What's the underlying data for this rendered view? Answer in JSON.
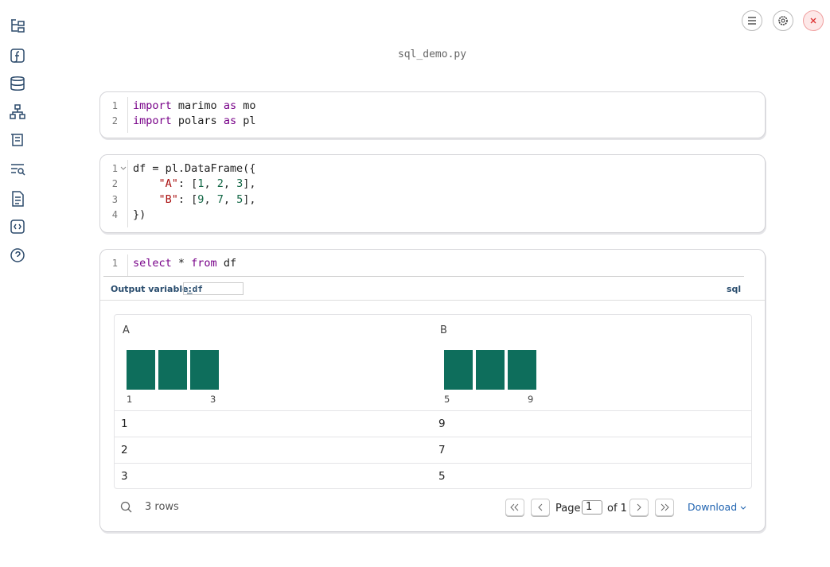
{
  "header": {
    "filename": "sql_demo.py"
  },
  "cells": [
    {
      "line_numbers": [
        1,
        2
      ],
      "lines": [
        [
          {
            "text": "import",
            "kind": "keyword"
          },
          {
            "text": " marimo ",
            "kind": "plain"
          },
          {
            "text": "as",
            "kind": "keyword"
          },
          {
            "text": " mo",
            "kind": "plain"
          }
        ],
        [
          {
            "text": "import",
            "kind": "keyword"
          },
          {
            "text": " polars ",
            "kind": "plain"
          },
          {
            "text": "as",
            "kind": "keyword"
          },
          {
            "text": " pl",
            "kind": "plain"
          }
        ]
      ]
    },
    {
      "line_numbers": [
        1,
        2,
        3,
        4
      ],
      "lines": [
        [
          {
            "text": "df = pl.DataFrame({",
            "kind": "plain"
          }
        ],
        [
          {
            "text": "    ",
            "kind": "plain"
          },
          {
            "text": "\"A\"",
            "kind": "string"
          },
          {
            "text": ": [",
            "kind": "plain"
          },
          {
            "text": "1",
            "kind": "number"
          },
          {
            "text": ", ",
            "kind": "plain"
          },
          {
            "text": "2",
            "kind": "number"
          },
          {
            "text": ", ",
            "kind": "plain"
          },
          {
            "text": "3",
            "kind": "number"
          },
          {
            "text": "],",
            "kind": "plain"
          }
        ],
        [
          {
            "text": "    ",
            "kind": "plain"
          },
          {
            "text": "\"B\"",
            "kind": "string"
          },
          {
            "text": ": [",
            "kind": "plain"
          },
          {
            "text": "9",
            "kind": "number"
          },
          {
            "text": ", ",
            "kind": "plain"
          },
          {
            "text": "7",
            "kind": "number"
          },
          {
            "text": ", ",
            "kind": "plain"
          },
          {
            "text": "5",
            "kind": "number"
          },
          {
            "text": "],",
            "kind": "plain"
          }
        ],
        [
          {
            "text": "})",
            "kind": "plain"
          }
        ]
      ]
    },
    {
      "line_numbers": [
        1
      ],
      "lines": [
        [
          {
            "text": "select",
            "kind": "keyword"
          },
          {
            "text": " * ",
            "kind": "plain"
          },
          {
            "text": "from",
            "kind": "keyword"
          },
          {
            "text": " df",
            "kind": "plain"
          }
        ]
      ]
    }
  ],
  "sql_output": {
    "label": "Output variable:",
    "variable": "_df",
    "language": "sql"
  },
  "table": {
    "columns": [
      {
        "name": "A",
        "hist_counts": [
          1,
          1,
          1
        ],
        "hist_labels": [
          1,
          3
        ]
      },
      {
        "name": "B",
        "hist_counts": [
          1,
          1,
          1
        ],
        "hist_labels": [
          5,
          9
        ]
      }
    ],
    "rows": [
      [
        1,
        9
      ],
      [
        2,
        7
      ],
      [
        3,
        5
      ]
    ],
    "footer": {
      "row_count": "3 rows",
      "page_label": "Page",
      "page": 1,
      "of": "of 1",
      "download": "Download"
    }
  }
}
